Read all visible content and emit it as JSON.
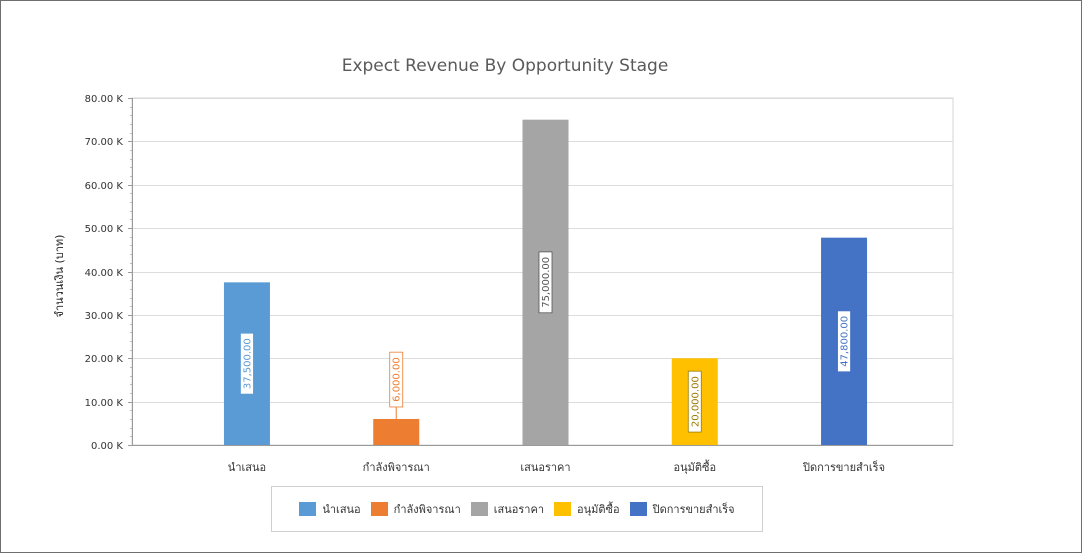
{
  "chart_data": {
    "type": "bar",
    "title": "Expect Revenue By Opportunity Stage",
    "xlabel": "",
    "ylabel": "จำนวนเงิน (บาท)",
    "ylim": [
      0,
      80000
    ],
    "yticks": [
      0,
      10000,
      20000,
      30000,
      40000,
      50000,
      60000,
      70000,
      80000
    ],
    "ytick_labels": [
      "0.00 K",
      "10.00 K",
      "20.00 K",
      "30.00 K",
      "40.00 K",
      "50.00 K",
      "60.00 K",
      "70.00 K",
      "80.00 K"
    ],
    "categories": [
      "นำเสนอ",
      "กำลังพิจารณา",
      "เสนอราคา",
      "อนุมัติซื้อ",
      "ปิดการขายสำเร็จ"
    ],
    "values": [
      37500,
      6000,
      75000,
      20000,
      47800
    ],
    "data_labels": [
      "37,500.00",
      "6,000.00",
      "75,000.00",
      "20,000.00",
      "47,800.00"
    ],
    "colors": [
      "#5b9bd5",
      "#ed7d31",
      "#a5a5a5",
      "#ffc000",
      "#4472c4"
    ],
    "grid": true,
    "legend_placement": "bottom",
    "legend": [
      "นำเสนอ",
      "กำลังพิจารณา",
      "เสนอราคา",
      "อนุมัติซื้อ",
      "ปิดการขายสำเร็จ"
    ]
  }
}
